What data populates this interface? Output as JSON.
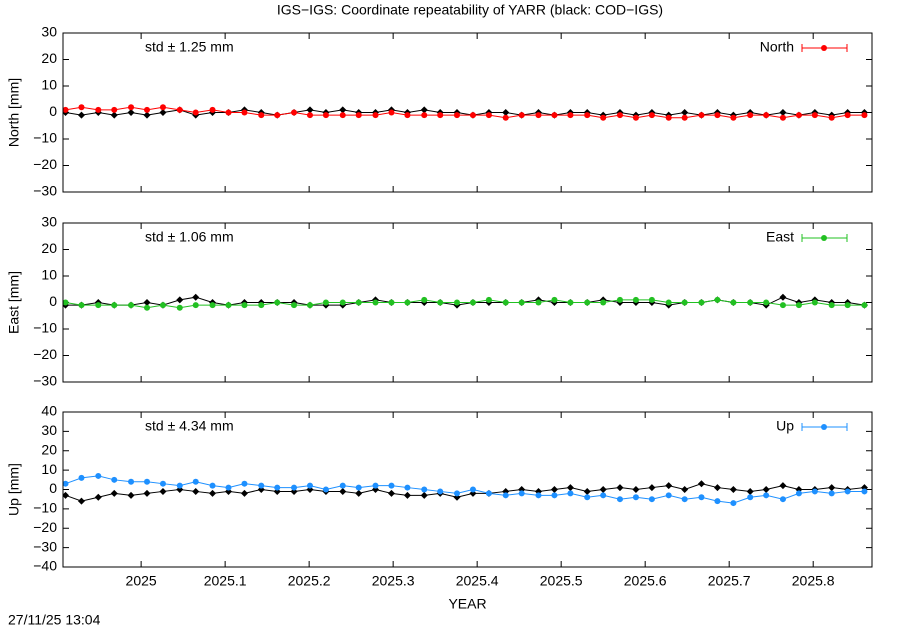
{
  "title": "IGS−IGS: Coordinate repeatability of YARR (black: COD−IGS)",
  "timestamp": "27/11/25 13:04",
  "chart_data": [
    {
      "type": "line",
      "ylabel": "North [mm]",
      "annotation": "std ± 1.25 mm",
      "legend": "top-right",
      "xlim": [
        2024.907,
        2025.87
      ],
      "xticks": [
        2025,
        2025.1,
        2025.2,
        2025.3,
        2025.4,
        2025.5,
        2025.6,
        2025.7,
        2025.8
      ],
      "ylim": [
        -30,
        30
      ],
      "yticks": [
        {
          "value": -30,
          "label": "−30"
        },
        {
          "value": -20,
          "label": "−20"
        },
        {
          "value": -10,
          "label": "−10"
        },
        0,
        10,
        20,
        30
      ],
      "x": [
        2024.91,
        2024.929,
        2024.949,
        2024.968,
        2024.988,
        2025.007,
        2025.026,
        2025.046,
        2025.065,
        2025.085,
        2025.104,
        2025.123,
        2025.143,
        2025.162,
        2025.182,
        2025.201,
        2025.22,
        2025.24,
        2025.259,
        2025.279,
        2025.298,
        2025.317,
        2025.337,
        2025.356,
        2025.376,
        2025.395,
        2025.414,
        2025.434,
        2025.453,
        2025.473,
        2025.492,
        2025.511,
        2025.531,
        2025.55,
        2025.57,
        2025.589,
        2025.608,
        2025.628,
        2025.647,
        2025.667,
        2025.686,
        2025.705,
        2025.725,
        2025.744,
        2025.764,
        2025.783,
        2025.802,
        2025.822,
        2025.841,
        2025.861
      ],
      "series": [
        {
          "color": "#000000",
          "values": [
            0,
            -1,
            0,
            -1,
            0,
            -1,
            0,
            1,
            -1,
            0,
            0,
            1,
            0,
            -1,
            0,
            1,
            0,
            1,
            0,
            0,
            1,
            0,
            1,
            0,
            0,
            -1,
            0,
            0,
            -1,
            0,
            -1,
            0,
            0,
            -1,
            0,
            -1,
            0,
            -1,
            0,
            -1,
            0,
            -1,
            0,
            -1,
            0,
            -1,
            0,
            -1,
            0,
            0
          ]
        },
        {
          "name": "North",
          "color": "#ff0000",
          "values": [
            1,
            2,
            1,
            1,
            2,
            1,
            2,
            1,
            0,
            1,
            0,
            0,
            -1,
            -1,
            0,
            -1,
            -1,
            -1,
            -1,
            -1,
            0,
            -1,
            -1,
            -1,
            -1,
            -1,
            -1,
            -2,
            -1,
            -1,
            -1,
            -1,
            -1,
            -2,
            -1,
            -2,
            -1,
            -2,
            -2,
            -1,
            -1,
            -2,
            -1,
            -1,
            -2,
            -1,
            -1,
            -2,
            -1,
            -1
          ]
        }
      ]
    },
    {
      "type": "line",
      "ylabel": "East [mm]",
      "annotation": "std ± 1.06 mm",
      "legend": "top-right",
      "xlim": [
        2024.907,
        2025.87
      ],
      "xticks": [
        2025,
        2025.1,
        2025.2,
        2025.3,
        2025.4,
        2025.5,
        2025.6,
        2025.7,
        2025.8
      ],
      "ylim": [
        -30,
        30
      ],
      "yticks": [
        {
          "value": -30,
          "label": "−30"
        },
        {
          "value": -20,
          "label": "−20"
        },
        {
          "value": -10,
          "label": "−10"
        },
        0,
        10,
        20,
        30
      ],
      "x": [
        2024.91,
        2024.929,
        2024.949,
        2024.968,
        2024.988,
        2025.007,
        2025.026,
        2025.046,
        2025.065,
        2025.085,
        2025.104,
        2025.123,
        2025.143,
        2025.162,
        2025.182,
        2025.201,
        2025.22,
        2025.24,
        2025.259,
        2025.279,
        2025.298,
        2025.317,
        2025.337,
        2025.356,
        2025.376,
        2025.395,
        2025.414,
        2025.434,
        2025.453,
        2025.473,
        2025.492,
        2025.511,
        2025.531,
        2025.55,
        2025.57,
        2025.589,
        2025.608,
        2025.628,
        2025.647,
        2025.667,
        2025.686,
        2025.705,
        2025.725,
        2025.744,
        2025.764,
        2025.783,
        2025.802,
        2025.822,
        2025.841,
        2025.861
      ],
      "series": [
        {
          "color": "#000000",
          "values": [
            -1,
            -1,
            0,
            -1,
            -1,
            0,
            -1,
            1,
            2,
            0,
            -1,
            0,
            0,
            0,
            0,
            -1,
            -1,
            -1,
            0,
            1,
            0,
            0,
            0,
            0,
            -1,
            0,
            0,
            0,
            0,
            1,
            0,
            0,
            0,
            1,
            0,
            0,
            0,
            -1,
            0,
            0,
            1,
            0,
            0,
            -1,
            2,
            0,
            1,
            0,
            0,
            -1
          ]
        },
        {
          "name": "East",
          "color": "#22c022",
          "values": [
            0,
            -1,
            -1,
            -1,
            -1,
            -2,
            -1,
            -2,
            -1,
            -1,
            -1,
            -1,
            -1,
            0,
            -1,
            -1,
            0,
            0,
            0,
            0,
            0,
            0,
            1,
            0,
            0,
            0,
            1,
            0,
            0,
            0,
            1,
            0,
            0,
            0,
            1,
            1,
            1,
            0,
            0,
            0,
            1,
            0,
            0,
            0,
            -1,
            -1,
            0,
            -1,
            -1,
            -1
          ]
        }
      ]
    },
    {
      "type": "line",
      "ylabel": "Up [mm]",
      "xlabel": "YEAR",
      "annotation": "std ± 4.34 mm",
      "legend": "top-right",
      "xlim": [
        2024.907,
        2025.87
      ],
      "xticks": [
        2025,
        2025.1,
        2025.2,
        2025.3,
        2025.4,
        2025.5,
        2025.6,
        2025.7,
        2025.8
      ],
      "ylim": [
        -40,
        40
      ],
      "yticks": [
        {
          "value": -40,
          "label": "−40"
        },
        {
          "value": -30,
          "label": "−30"
        },
        {
          "value": -20,
          "label": "−20"
        },
        {
          "value": -10,
          "label": "−10"
        },
        0,
        10,
        20,
        30,
        40
      ],
      "x": [
        2024.91,
        2024.929,
        2024.949,
        2024.968,
        2024.988,
        2025.007,
        2025.026,
        2025.046,
        2025.065,
        2025.085,
        2025.104,
        2025.123,
        2025.143,
        2025.162,
        2025.182,
        2025.201,
        2025.22,
        2025.24,
        2025.259,
        2025.279,
        2025.298,
        2025.317,
        2025.337,
        2025.356,
        2025.376,
        2025.395,
        2025.414,
        2025.434,
        2025.453,
        2025.473,
        2025.492,
        2025.511,
        2025.531,
        2025.55,
        2025.57,
        2025.589,
        2025.608,
        2025.628,
        2025.647,
        2025.667,
        2025.686,
        2025.705,
        2025.725,
        2025.744,
        2025.764,
        2025.783,
        2025.802,
        2025.822,
        2025.841,
        2025.861
      ],
      "series": [
        {
          "color": "#000000",
          "values": [
            -3,
            -6,
            -4,
            -2,
            -3,
            -2,
            -1,
            0,
            -1,
            -2,
            -1,
            -2,
            0,
            -1,
            -1,
            0,
            -1,
            -1,
            -2,
            0,
            -2,
            -3,
            -3,
            -2,
            -4,
            -2,
            -2,
            -1,
            0,
            -1,
            0,
            1,
            -1,
            0,
            1,
            0,
            1,
            2,
            0,
            3,
            1,
            0,
            -1,
            0,
            2,
            0,
            0,
            1,
            0,
            1
          ]
        },
        {
          "name": "Up",
          "color": "#1e90ff",
          "values": [
            3,
            6,
            7,
            5,
            4,
            4,
            3,
            2,
            4,
            2,
            1,
            3,
            2,
            1,
            1,
            2,
            0,
            2,
            1,
            2,
            2,
            1,
            0,
            -1,
            -2,
            0,
            -2,
            -3,
            -2,
            -3,
            -3,
            -2,
            -4,
            -3,
            -5,
            -4,
            -5,
            -3,
            -5,
            -4,
            -6,
            -7,
            -4,
            -3,
            -5,
            -2,
            -1,
            -2,
            -1,
            -1
          ]
        }
      ]
    }
  ]
}
